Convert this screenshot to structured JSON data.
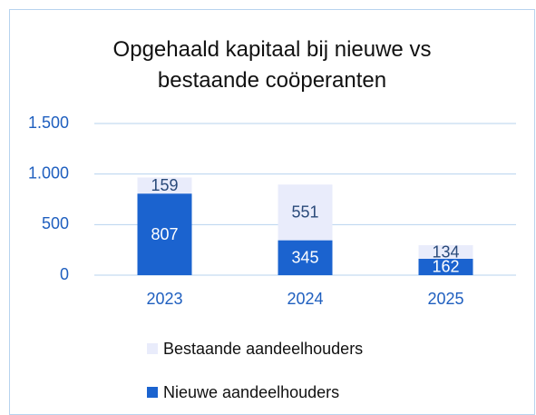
{
  "chart_data": {
    "type": "stacked_bar",
    "title": "Opgehaald kapitaal bij nieuwe vs bestaande coöperanten",
    "categories": [
      "2023",
      "2024",
      "2025"
    ],
    "series": [
      {
        "name": "Nieuwe aandeelhouders",
        "color": "#1b63cf",
        "values": [
          807,
          345,
          162
        ]
      },
      {
        "name": "Bestaande aandeelhouders",
        "color": "#e9ecfb",
        "values": [
          159,
          551,
          134
        ]
      }
    ],
    "ylim": [
      0,
      1500
    ],
    "yticks": [
      0,
      500,
      {
        "value": 1000,
        "label": "1.000"
      },
      {
        "value": 1500,
        "label": "1.500"
      }
    ],
    "grid": true,
    "legend": "bottom"
  }
}
